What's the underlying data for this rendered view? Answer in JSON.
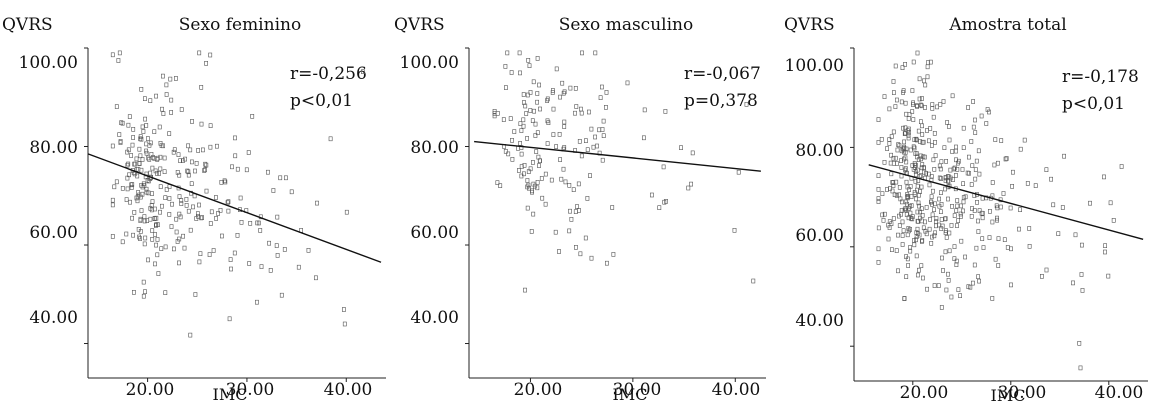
{
  "chart_data": [
    {
      "type": "scatter",
      "title": "Sexo feminino",
      "ylabel": "QVRS",
      "xlabel": "IMC",
      "xlim": [
        14,
        44
      ],
      "ylim": [
        35,
        100
      ],
      "xticks": [
        "20.00",
        "30.00",
        "40.00"
      ],
      "yticks": [
        "100.00",
        "80.00",
        "60.00",
        "40.00"
      ],
      "stat_r": "r=-0,256",
      "stat_p": "p<0,01",
      "trend_line": {
        "x": [
          14,
          43.5
        ],
        "y": [
          78.5,
          56.5
        ]
      },
      "n_points": 300,
      "seed": 11
    },
    {
      "type": "scatter",
      "title": "Sexo masculino",
      "ylabel": "QVRS",
      "xlabel": "IMC",
      "xlim": [
        14,
        43
      ],
      "ylim": [
        35,
        100
      ],
      "xticks": [
        "20.00",
        "30.00",
        "40.00"
      ],
      "yticks": [
        "100.00",
        "80.00",
        "60.00",
        "40.00"
      ],
      "stat_r": "r=-0,067",
      "stat_p": "p=0,378",
      "trend_line": {
        "x": [
          14.5,
          42.5
        ],
        "y": [
          81,
          75
        ]
      },
      "n_points": 170,
      "seed": 23
    },
    {
      "type": "scatter",
      "title": "Amostra total",
      "ylabel": "QVRS",
      "xlabel": "IMC",
      "xlim": [
        14,
        44
      ],
      "ylim": [
        35,
        100
      ],
      "xticks": [
        "20.00",
        "30.00",
        "40.00"
      ],
      "yticks": [
        "100.00",
        "80.00",
        "60.00",
        "40.00"
      ],
      "stat_r": "r=-0,178",
      "stat_p": "p<0,01",
      "trend_line": {
        "x": [
          15.5,
          43.5
        ],
        "y": [
          76.5,
          61.5
        ]
      },
      "n_points": 470,
      "seed": 37
    }
  ]
}
